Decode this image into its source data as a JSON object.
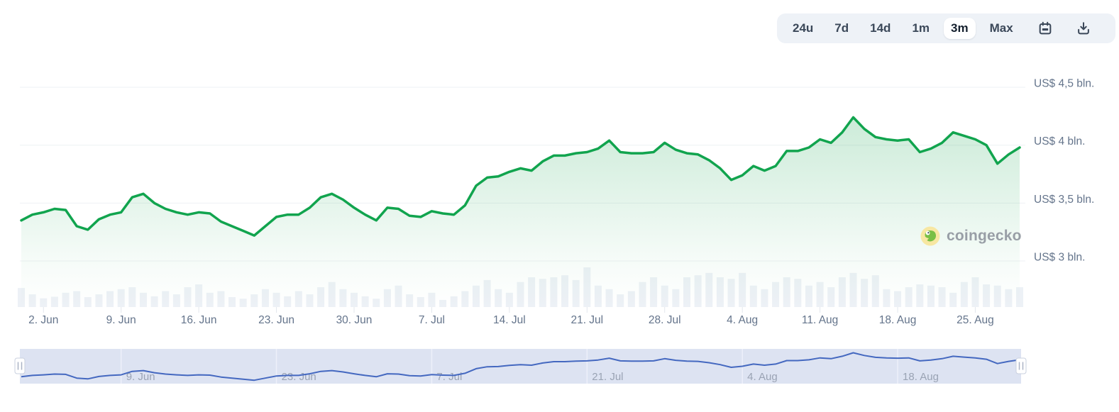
{
  "toolbar": {
    "ranges": [
      "24u",
      "7d",
      "14d",
      "1m",
      "3m",
      "Max"
    ],
    "active": "3m",
    "calendar_icon": "calendar-icon",
    "download_icon": "download-icon"
  },
  "watermark": {
    "text": "coingecko"
  },
  "chart_data": {
    "type": "line",
    "title": "",
    "description": "Market cap (green area line, US$ bln) with daily volume bars and a range navigator strip below",
    "unit": "US$ bln",
    "start_date": "31. May",
    "end_date": "29. Aug",
    "ylim": [
      2.95,
      4.7
    ],
    "grid": "horizontal",
    "legend": "none",
    "y_ticks": [
      {
        "label": "US$ 4,5 bln.",
        "value": 4.5
      },
      {
        "label": "US$ 4 bln.",
        "value": 4.0
      },
      {
        "label": "US$ 3,5 bln.",
        "value": 3.5
      },
      {
        "label": "US$ 3 bln.",
        "value": 3.0
      }
    ],
    "x_ticks": [
      {
        "label": "2. Jun",
        "day": 2
      },
      {
        "label": "9. Jun",
        "day": 9
      },
      {
        "label": "16. Jun",
        "day": 16
      },
      {
        "label": "23. Jun",
        "day": 23
      },
      {
        "label": "30. Jun",
        "day": 30
      },
      {
        "label": "7. Jul",
        "day": 37
      },
      {
        "label": "14. Jul",
        "day": 44
      },
      {
        "label": "21. Jul",
        "day": 51
      },
      {
        "label": "28. Jul",
        "day": 58
      },
      {
        "label": "4. Aug",
        "day": 65
      },
      {
        "label": "11. Aug",
        "day": 72
      },
      {
        "label": "18. Aug",
        "day": 79
      },
      {
        "label": "25. Aug",
        "day": 86
      }
    ],
    "series": [
      {
        "name": "market_cap_usd_bln",
        "values": [
          3.35,
          3.4,
          3.42,
          3.45,
          3.44,
          3.3,
          3.27,
          3.36,
          3.4,
          3.42,
          3.55,
          3.58,
          3.5,
          3.45,
          3.42,
          3.4,
          3.42,
          3.41,
          3.34,
          3.3,
          3.26,
          3.22,
          3.3,
          3.38,
          3.4,
          3.4,
          3.46,
          3.55,
          3.58,
          3.53,
          3.46,
          3.4,
          3.35,
          3.46,
          3.45,
          3.39,
          3.38,
          3.43,
          3.41,
          3.4,
          3.48,
          3.65,
          3.72,
          3.73,
          3.77,
          3.8,
          3.78,
          3.86,
          3.91,
          3.91,
          3.93,
          3.94,
          3.97,
          4.04,
          3.94,
          3.93,
          3.93,
          3.94,
          4.02,
          3.96,
          3.93,
          3.92,
          3.87,
          3.8,
          3.7,
          3.74,
          3.82,
          3.78,
          3.82,
          3.95,
          3.95,
          3.98,
          4.05,
          4.02,
          4.11,
          4.24,
          4.14,
          4.07,
          4.05,
          4.04,
          4.05,
          3.94,
          3.97,
          4.02,
          4.11,
          4.08,
          4.05,
          4.0,
          3.84,
          3.92,
          3.98
        ]
      }
    ],
    "volume_relative": [
      0.48,
      0.32,
      0.22,
      0.26,
      0.36,
      0.4,
      0.25,
      0.32,
      0.4,
      0.45,
      0.5,
      0.36,
      0.27,
      0.4,
      0.32,
      0.5,
      0.57,
      0.36,
      0.4,
      0.25,
      0.21,
      0.32,
      0.45,
      0.36,
      0.27,
      0.4,
      0.32,
      0.5,
      0.63,
      0.45,
      0.36,
      0.27,
      0.21,
      0.45,
      0.54,
      0.32,
      0.25,
      0.36,
      0.18,
      0.27,
      0.4,
      0.54,
      0.68,
      0.45,
      0.36,
      0.63,
      0.75,
      0.71,
      0.75,
      0.8,
      0.68,
      1.0,
      0.54,
      0.45,
      0.32,
      0.4,
      0.63,
      0.75,
      0.54,
      0.45,
      0.75,
      0.8,
      0.86,
      0.75,
      0.71,
      0.86,
      0.54,
      0.45,
      0.63,
      0.75,
      0.71,
      0.54,
      0.63,
      0.5,
      0.75,
      0.86,
      0.71,
      0.8,
      0.45,
      0.4,
      0.5,
      0.57,
      0.54,
      0.5,
      0.36,
      0.63,
      0.75,
      0.57,
      0.54,
      0.45,
      0.5
    ],
    "navigator": {
      "ticks": [
        {
          "label": "9. Jun",
          "day": 9
        },
        {
          "label": "23. Jun",
          "day": 23
        },
        {
          "label": "7. Jul",
          "day": 37
        },
        {
          "label": "21. Jul",
          "day": 51
        },
        {
          "label": "4. Aug",
          "day": 65
        },
        {
          "label": "18. Aug",
          "day": 79
        }
      ]
    },
    "colors": {
      "line": "#11a44e",
      "area_top": "#17a550",
      "volume_bar": "#edf1f6",
      "grid": "#eef1f4",
      "tick": "#e3e7ed",
      "axis_text": "#64748b",
      "nav_band": "#dde3f2",
      "nav_grid": "#edf0fa",
      "nav_line": "#4468c0",
      "nav_text": "#9aa3b4",
      "handle_fill": "#ffffff",
      "handle_border": "#c9d0df",
      "handle_grip": "#aab3c5"
    }
  }
}
